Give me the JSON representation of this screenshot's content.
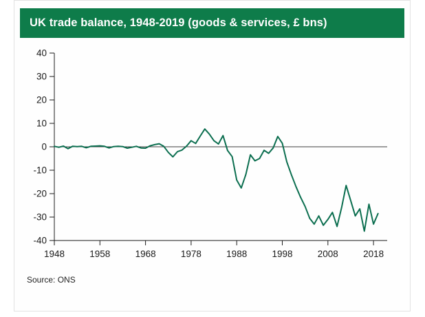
{
  "header": {
    "title": "UK trade balance, 1948-2019 (goods & services, £ bns)",
    "bg": "#0e7c4a",
    "text_color": "#ffffff"
  },
  "source": {
    "label": "Source: ONS"
  },
  "chart_data": {
    "type": "line",
    "title": "UK trade balance, 1948-2019 (goods & services, £ bns)",
    "xlabel": "",
    "ylabel": "",
    "ylim": [
      -40,
      40
    ],
    "y_ticks": [
      40,
      30,
      20,
      10,
      0,
      -10,
      -20,
      -30,
      -40
    ],
    "x_ticks": [
      1948,
      1958,
      1968,
      1978,
      1988,
      1998,
      2008,
      2018
    ],
    "x_domain": [
      1948,
      2021
    ],
    "grid": false,
    "zero_line": true,
    "line_color": "#0b6e4f",
    "axis_color": "#1a1a1a",
    "zero_line_color": "#3f3f3f",
    "series": [
      {
        "name": "UK trade balance (goods & services, £ bns)",
        "x": [
          1948,
          1949,
          1950,
          1951,
          1952,
          1953,
          1954,
          1955,
          1956,
          1957,
          1958,
          1959,
          1960,
          1961,
          1962,
          1963,
          1964,
          1965,
          1966,
          1967,
          1968,
          1969,
          1970,
          1971,
          1972,
          1973,
          1974,
          1975,
          1976,
          1977,
          1978,
          1979,
          1980,
          1981,
          1982,
          1983,
          1984,
          1985,
          1986,
          1987,
          1988,
          1989,
          1990,
          1991,
          1992,
          1993,
          1994,
          1995,
          1996,
          1997,
          1998,
          1999,
          2000,
          2001,
          2002,
          2003,
          2004,
          2005,
          2006,
          2007,
          2008,
          2009,
          2010,
          2011,
          2012,
          2013,
          2014,
          2015,
          2016,
          2017,
          2018,
          2019
        ],
        "values": [
          0.2,
          -0.2,
          0.3,
          -0.8,
          0.2,
          0.1,
          0.2,
          -0.4,
          0.2,
          0.3,
          0.4,
          0.2,
          -0.5,
          0.1,
          0.2,
          0.1,
          -0.6,
          -0.2,
          0.2,
          -0.5,
          -0.6,
          0.4,
          0.9,
          1.3,
          0.2,
          -2.4,
          -4.3,
          -2.1,
          -1.4,
          0.3,
          2.6,
          1.4,
          4.6,
          7.6,
          5.4,
          2.6,
          1.2,
          4.8,
          -1.6,
          -4.2,
          -14.2,
          -17.6,
          -11.8,
          -3.4,
          -6.0,
          -5.0,
          -1.5,
          -2.8,
          -0.5,
          4.4,
          1.5,
          -6.5,
          -12.0,
          -17.0,
          -21.5,
          -25.5,
          -30.5,
          -33.0,
          -29.5,
          -33.5,
          -31.0,
          -28.0,
          -34.0,
          -26.0,
          -16.5,
          -23.0,
          -29.5,
          -26.5,
          -36.0,
          -24.5,
          -33.0,
          -28.5
        ]
      }
    ],
    "legend": null
  }
}
